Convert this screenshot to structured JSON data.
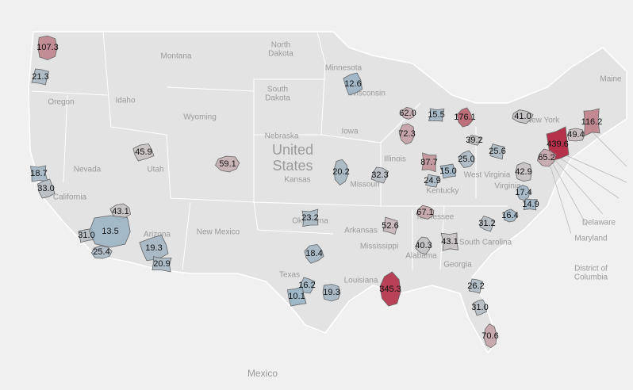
{
  "map": {
    "places": [
      "North Dakota",
      "Montana",
      "Minnesota",
      "Maine",
      "Oregon",
      "Idaho",
      "South Dakota",
      "Wisconsin",
      "New York",
      "Wyoming",
      "Nebraska",
      "Iowa",
      "United States",
      "Nevada",
      "Utah",
      "Kansas",
      "Illinois",
      "Missouri",
      "Kentucky",
      "West Virginia",
      "California",
      "Virginia",
      "Oklahoma",
      "Arkansas",
      "Tennessee",
      "New Mexico",
      "Arizona",
      "South Carolina",
      "Mississippi",
      "Alabama",
      "Georgia",
      "Texas",
      "Louisiana",
      "Delaware",
      "Maryland",
      "District of Columbia",
      "Mexico"
    ],
    "regions": {
      "values": [
        107.3,
        21.3,
        12.6,
        62.0,
        15.5,
        176.1,
        41.0,
        116.2,
        72.3,
        39.2,
        439.6,
        49.4,
        25.6,
        45.9,
        59.1,
        87.7,
        25.0,
        65.2,
        18.7,
        20.2,
        32.3,
        15.0,
        42.9,
        24.9,
        33.0,
        17.4,
        14.9,
        43.1,
        67.1,
        23.2,
        16.4,
        31.2,
        31.0,
        13.5,
        52.6,
        19.3,
        25.4,
        20.9,
        18.4,
        40.3,
        43.1,
        345.3,
        16.2,
        10.1,
        19.3,
        26.2,
        31.0,
        70.6
      ],
      "value_labels": [
        "107.3",
        "21.3",
        "12.6",
        "62.0",
        "15.5",
        "176.1",
        "41.0",
        "116.2",
        "72.3",
        "39.2",
        "439.6",
        "49.4",
        "25.6",
        "45.9",
        "59.1",
        "87.7",
        "25.0",
        "65.2",
        "18.7",
        "20.2",
        "32.3",
        "15.0",
        "42.9",
        "24.9",
        "33.0",
        "17.4",
        "14.9",
        "43.1",
        "67.1",
        "23.2",
        "16.4",
        "31.2",
        "31.0",
        "13.5",
        "52.6",
        "19.3",
        "25.4",
        "20.9",
        "18.4",
        "40.3",
        "43.1",
        "345.3",
        "16.2",
        "10.1",
        "19.3",
        "26.2",
        "31.0",
        "70.6"
      ]
    }
  }
}
